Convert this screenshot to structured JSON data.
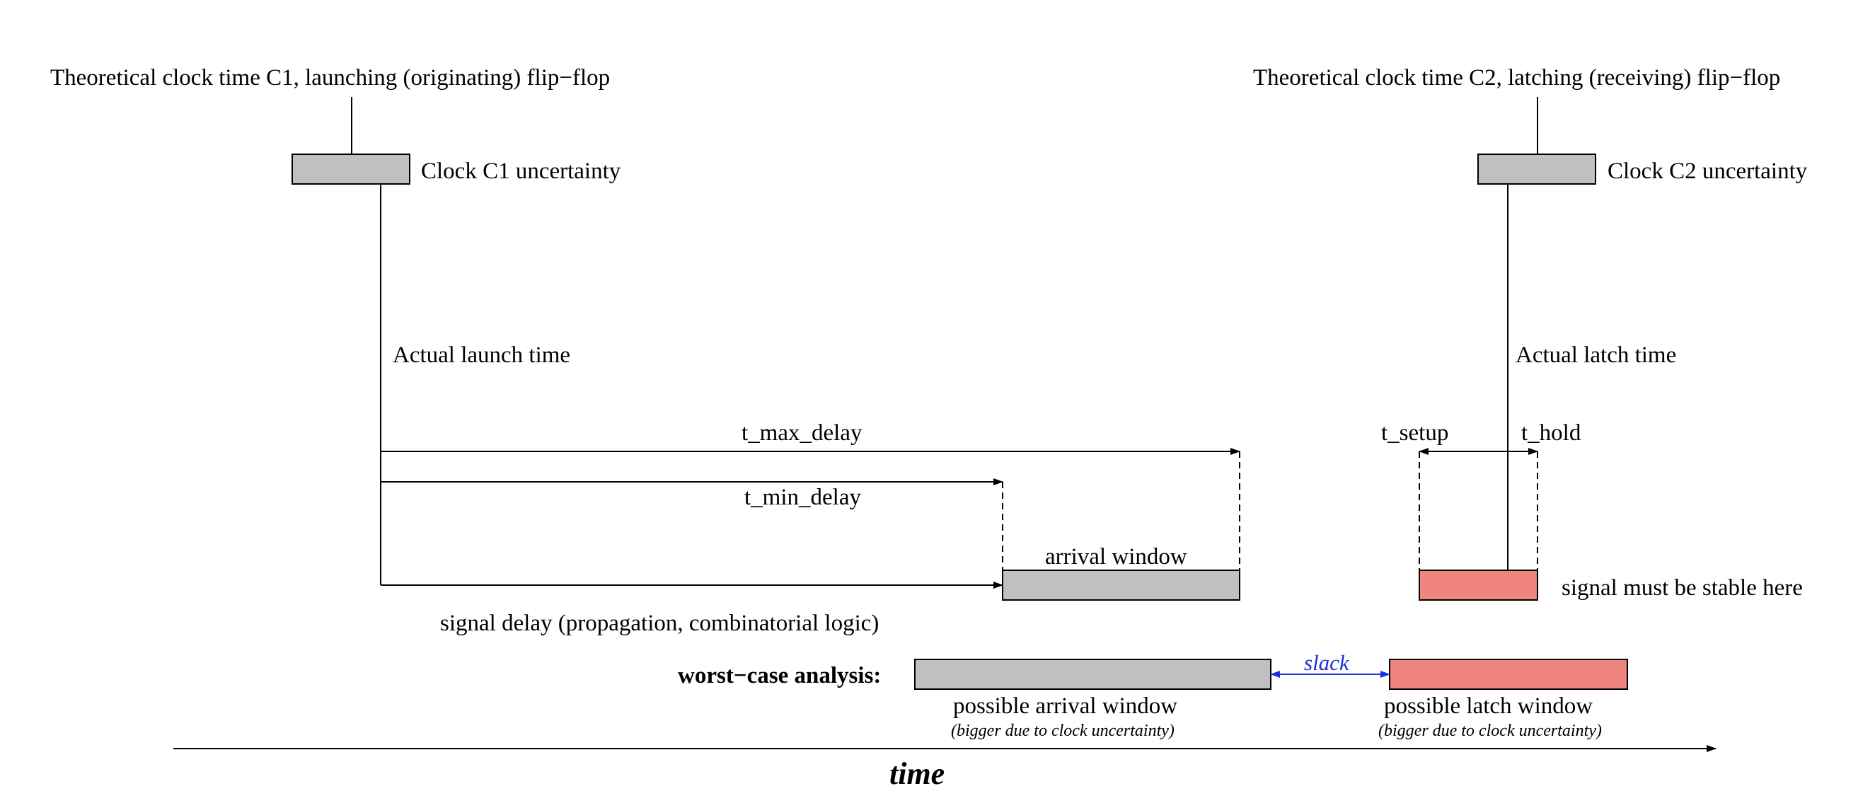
{
  "labels": {
    "c1_title": "Theoretical clock time C1, launching (originating) flip−flop",
    "c2_title": "Theoretical clock time C2, latching (receiving) flip−flop",
    "c1_uncertainty": "Clock C1 uncertainty",
    "c2_uncertainty": "Clock C2 uncertainty",
    "actual_launch": "Actual launch time",
    "actual_latch": "Actual latch time",
    "t_max_delay": "t_max_delay",
    "t_min_delay": "t_min_delay",
    "t_setup": "t_setup",
    "t_hold": "t_hold",
    "arrival_window": "arrival window",
    "stable_here": "signal must be stable here",
    "signal_delay": "signal delay (propagation, combinatorial logic)",
    "worst_case": "worst−case analysis:",
    "slack": "slack",
    "possible_arrival": "possible arrival window",
    "possible_latch": "possible latch window",
    "bigger_note_1": "(bigger due to clock uncertainty)",
    "bigger_note_2": "(bigger due to clock uncertainty)",
    "time": "time"
  },
  "colors": {
    "uncertainty_fill": "#c0c0c0",
    "stable_fill": "#f08580",
    "slack_color": "#1a2fe0",
    "line_color": "#000000"
  }
}
